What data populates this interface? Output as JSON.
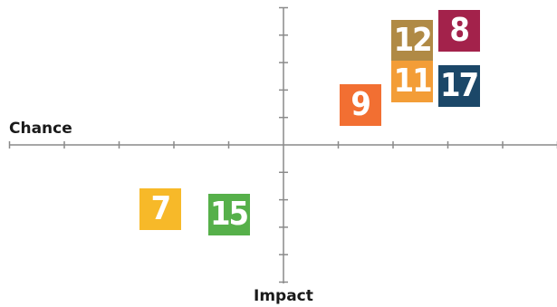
{
  "chart_data": {
    "type": "scatter",
    "xlabel": "Chance",
    "ylabel": "Impact",
    "xlim": [
      -5,
      5
    ],
    "ylim": [
      -5,
      5
    ],
    "points": [
      {
        "label": "12",
        "x": 2.35,
        "y": 3.8,
        "color": "#b08a45"
      },
      {
        "label": "8",
        "x": 3.2,
        "y": 4.15,
        "color": "#a3224b"
      },
      {
        "label": "11",
        "x": 2.35,
        "y": 2.3,
        "color": "#f39d37"
      },
      {
        "label": "17",
        "x": 3.2,
        "y": 2.15,
        "color": "#1b4768"
      },
      {
        "label": "9",
        "x": 1.4,
        "y": 1.45,
        "color": "#f26f32"
      },
      {
        "label": "7",
        "x": -2.25,
        "y": -2.35,
        "color": "#f7b929"
      },
      {
        "label": "15",
        "x": -1.0,
        "y": -2.55,
        "color": "#56b04a"
      }
    ]
  }
}
